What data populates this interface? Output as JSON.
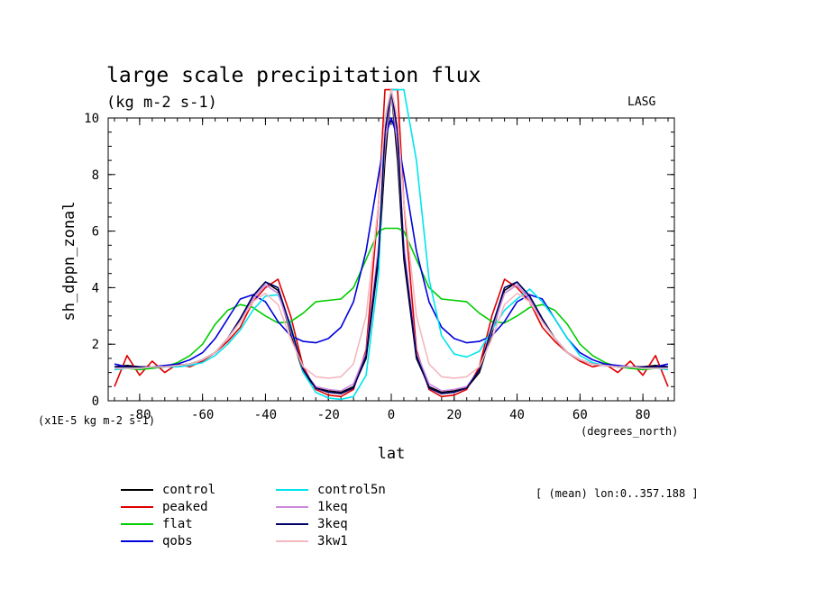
{
  "chart_data": {
    "type": "line",
    "title": "large scale precipitation flux",
    "subtitle": "(kg m-2 s-1)",
    "tag": "LASG",
    "xlabel": "lat",
    "ylabel": "sh_dppn_zonal",
    "x_units": "(degrees_north)",
    "y_units": "(x1E-5 kg m-2 s-1)",
    "xlim": [
      -90,
      90
    ],
    "ylim": [
      0,
      10
    ],
    "xticks": [
      -80,
      -60,
      -40,
      -20,
      0,
      20,
      40,
      60,
      80
    ],
    "yticks": [
      0,
      2,
      4,
      6,
      8,
      10
    ],
    "grid": false,
    "legend_position": "below-left",
    "note": "[ (mean) lon:0..357.188 ]",
    "x": [
      -88,
      -84,
      -80,
      -76,
      -72,
      -68,
      -64,
      -60,
      -56,
      -52,
      -48,
      -44,
      -40,
      -36,
      -32,
      -28,
      -24,
      -20,
      -16,
      -12,
      -8,
      -4,
      -2,
      0,
      2,
      4,
      8,
      12,
      16,
      20,
      24,
      28,
      32,
      36,
      40,
      44,
      48,
      52,
      56,
      60,
      64,
      68,
      72,
      76,
      80,
      84,
      88
    ],
    "series": [
      {
        "name": "control",
        "color": "#000000",
        "values": [
          1.2,
          1.25,
          1.2,
          1.2,
          1.2,
          1.25,
          1.3,
          1.45,
          1.7,
          2.2,
          2.9,
          3.7,
          4.2,
          3.9,
          2.4,
          1.0,
          0.45,
          0.35,
          0.3,
          0.5,
          1.5,
          5.0,
          8.5,
          11,
          8.5,
          5.0,
          1.5,
          0.5,
          0.3,
          0.35,
          0.45,
          1.0,
          2.4,
          3.9,
          4.2,
          3.7,
          2.9,
          2.2,
          1.7,
          1.45,
          1.3,
          1.25,
          1.2,
          1.2,
          1.2,
          1.25,
          1.2
        ]
      },
      {
        "name": "peaked",
        "color": "#e00000",
        "values": [
          0.5,
          1.6,
          0.9,
          1.4,
          1.0,
          1.3,
          1.2,
          1.4,
          1.7,
          2.1,
          2.6,
          3.5,
          4.0,
          4.3,
          3.0,
          1.2,
          0.4,
          0.2,
          0.15,
          0.4,
          1.8,
          7.0,
          11,
          11,
          11,
          7.0,
          1.8,
          0.4,
          0.15,
          0.2,
          0.4,
          1.2,
          3.0,
          4.3,
          4.0,
          3.5,
          2.6,
          2.1,
          1.7,
          1.4,
          1.2,
          1.3,
          1.0,
          1.4,
          0.9,
          1.6,
          0.5
        ]
      },
      {
        "name": "flat",
        "color": "#00cc00",
        "values": [
          1.2,
          1.15,
          1.1,
          1.15,
          1.2,
          1.35,
          1.6,
          2.0,
          2.7,
          3.2,
          3.4,
          3.3,
          3.0,
          2.75,
          2.8,
          3.1,
          3.5,
          3.55,
          3.6,
          4.0,
          5.0,
          6.0,
          6.1,
          6.1,
          6.1,
          6.0,
          5.0,
          4.0,
          3.6,
          3.55,
          3.5,
          3.1,
          2.8,
          2.75,
          3.0,
          3.3,
          3.4,
          3.2,
          2.7,
          2.0,
          1.6,
          1.35,
          1.2,
          1.15,
          1.1,
          1.15,
          1.2
        ]
      },
      {
        "name": "qobs",
        "color": "#0000dd",
        "values": [
          1.3,
          1.2,
          1.15,
          1.2,
          1.25,
          1.3,
          1.45,
          1.7,
          2.2,
          2.9,
          3.6,
          3.75,
          3.5,
          2.8,
          2.3,
          2.1,
          2.05,
          2.2,
          2.6,
          3.5,
          5.3,
          8.0,
          9.3,
          10.0,
          9.3,
          8.0,
          5.3,
          3.5,
          2.6,
          2.2,
          2.05,
          2.1,
          2.3,
          2.8,
          3.5,
          3.75,
          3.6,
          2.9,
          2.2,
          1.7,
          1.45,
          1.3,
          1.25,
          1.2,
          1.15,
          1.2,
          1.3
        ]
      },
      {
        "name": "control5n",
        "color": "#00e5ee",
        "values": [
          1.1,
          1.15,
          1.15,
          1.2,
          1.2,
          1.2,
          1.25,
          1.35,
          1.6,
          2.0,
          2.5,
          3.2,
          3.7,
          3.75,
          2.7,
          1.0,
          0.3,
          0.1,
          0.05,
          0.15,
          0.9,
          4.5,
          10,
          11,
          11,
          11,
          8.5,
          4.3,
          2.3,
          1.65,
          1.55,
          1.75,
          2.5,
          3.2,
          3.6,
          3.95,
          3.5,
          2.9,
          2.2,
          1.6,
          1.35,
          1.25,
          1.2,
          1.2,
          1.15,
          1.15,
          1.1
        ]
      },
      {
        "name": "1keq",
        "color": "#cc88dd",
        "values": [
          1.2,
          1.2,
          1.2,
          1.2,
          1.2,
          1.25,
          1.3,
          1.45,
          1.7,
          2.2,
          2.8,
          3.6,
          4.1,
          3.8,
          2.5,
          1.1,
          0.5,
          0.4,
          0.35,
          0.6,
          1.7,
          5.5,
          9.0,
          11,
          9.0,
          5.5,
          1.7,
          0.6,
          0.35,
          0.4,
          0.5,
          1.1,
          2.5,
          3.8,
          4.1,
          3.6,
          2.8,
          2.2,
          1.7,
          1.45,
          1.3,
          1.25,
          1.2,
          1.2,
          1.2,
          1.2,
          1.2
        ]
      },
      {
        "name": "3keq",
        "color": "#000066",
        "values": [
          1.2,
          1.2,
          1.2,
          1.2,
          1.2,
          1.25,
          1.3,
          1.45,
          1.7,
          2.2,
          2.9,
          3.7,
          4.2,
          4.0,
          2.6,
          1.1,
          0.45,
          0.3,
          0.25,
          0.45,
          1.6,
          5.2,
          9.5,
          11,
          9.5,
          5.2,
          1.6,
          0.45,
          0.25,
          0.3,
          0.45,
          1.1,
          2.6,
          4.0,
          4.2,
          3.7,
          2.9,
          2.2,
          1.7,
          1.45,
          1.3,
          1.25,
          1.2,
          1.2,
          1.2,
          1.2,
          1.2
        ]
      },
      {
        "name": "3kw1",
        "color": "#f4b8c0",
        "values": [
          1.15,
          1.15,
          1.15,
          1.2,
          1.2,
          1.25,
          1.3,
          1.45,
          1.7,
          2.2,
          2.8,
          3.5,
          3.8,
          3.4,
          2.2,
          1.2,
          0.85,
          0.8,
          0.85,
          1.3,
          3.0,
          7.0,
          10,
          11,
          10,
          7.0,
          3.0,
          1.3,
          0.85,
          0.8,
          0.85,
          1.2,
          2.2,
          3.4,
          3.8,
          3.5,
          2.8,
          2.2,
          1.7,
          1.45,
          1.3,
          1.25,
          1.2,
          1.2,
          1.15,
          1.15,
          1.15
        ]
      }
    ]
  }
}
